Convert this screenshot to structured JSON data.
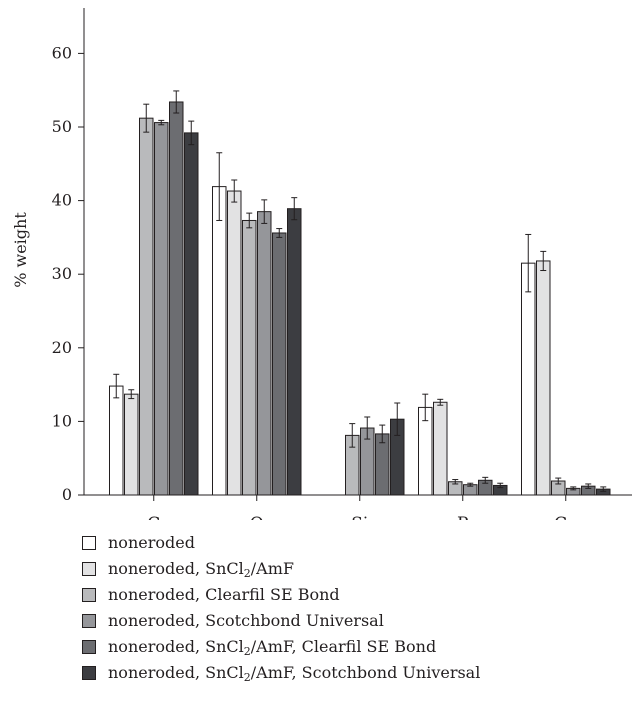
{
  "chart_data": {
    "type": "bar",
    "title": "",
    "xlabel": "",
    "ylabel": "% weight",
    "ylim": [
      0,
      65
    ],
    "yticks": [
      0,
      10,
      20,
      30,
      40,
      50,
      60
    ],
    "categories": [
      "C",
      "O",
      "Si",
      "P",
      "Ca"
    ],
    "grid": false,
    "legend_position": "bottom",
    "series": [
      {
        "name": "noneroded",
        "color": "#ffffff",
        "values": [
          14.8,
          41.9,
          null,
          11.9,
          31.5
        ],
        "errors": [
          1.6,
          4.6,
          null,
          1.8,
          3.9
        ]
      },
      {
        "name": "noneroded, SnCl2/AmF",
        "color": "#e2e2e3",
        "values": [
          13.7,
          41.3,
          null,
          12.6,
          31.8
        ],
        "errors": [
          0.6,
          1.5,
          null,
          0.4,
          1.3
        ]
      },
      {
        "name": "noneroded, Clearfil SE Bond",
        "color": "#b9babc",
        "values": [
          51.2,
          37.3,
          8.1,
          1.8,
          1.9
        ],
        "errors": [
          1.9,
          1.0,
          1.6,
          0.3,
          0.4
        ]
      },
      {
        "name": "noneroded, Scotchbond Universal",
        "color": "#95969a",
        "values": [
          50.6,
          38.5,
          9.1,
          1.4,
          0.9
        ],
        "errors": [
          0.3,
          1.6,
          1.5,
          0.2,
          0.2
        ]
      },
      {
        "name": "noneroded, SnCl2/AmF, Clearfil SE Bond",
        "color": "#6c6d71",
        "values": [
          53.4,
          35.6,
          8.3,
          2.0,
          1.2
        ],
        "errors": [
          1.5,
          0.6,
          1.2,
          0.4,
          0.3
        ]
      },
      {
        "name": "noneroded, SnCl2/AmF, Scotchbond Universal",
        "color": "#3c3d41",
        "values": [
          49.2,
          38.9,
          10.3,
          1.3,
          0.8
        ],
        "errors": [
          1.6,
          1.5,
          2.2,
          0.3,
          0.3
        ]
      }
    ]
  },
  "legend": {
    "items": [
      {
        "prefix": "noneroded",
        "sub": "",
        "suffix": ""
      },
      {
        "prefix": "noneroded, SnCl",
        "sub": "2",
        "suffix": "/AmF"
      },
      {
        "prefix": "noneroded, Clearfil SE Bond",
        "sub": "",
        "suffix": ""
      },
      {
        "prefix": "noneroded, Scotchbond Universal",
        "sub": "",
        "suffix": ""
      },
      {
        "prefix": "noneroded, SnCl",
        "sub": "2",
        "suffix": "/AmF, Clearfil SE Bond"
      },
      {
        "prefix": "noneroded, SnCl",
        "sub": "2",
        "suffix": "/AmF, Scotchbond Universal"
      }
    ]
  }
}
